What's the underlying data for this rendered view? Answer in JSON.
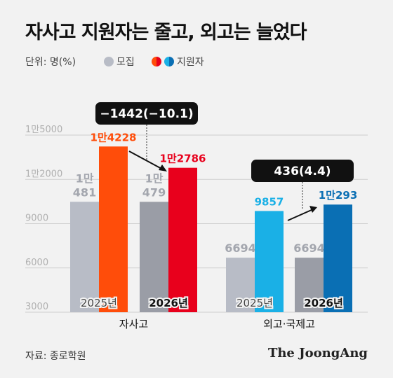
{
  "title": "자사고 지원자는 줄고, 외고는 늘었다",
  "unit_label": "단위: 명(%)",
  "legend": [
    {
      "label": "모집",
      "colors": [
        "#b8bcc6",
        "#9a9da6"
      ]
    },
    {
      "label": "지원자",
      "colors": [
        "#ff4d0a",
        "#1aa0d8"
      ]
    }
  ],
  "source": "자료: 종로학원",
  "brand": "The JoongAng",
  "chart_data": {
    "type": "bar",
    "ylim": [
      3000,
      15000
    ],
    "yticks": [
      3000,
      6000,
      9000,
      12000,
      15000
    ],
    "ytick_labels": [
      "3000",
      "6000",
      "9000",
      "1만2000",
      "1만5000"
    ],
    "groups": [
      {
        "name": "자사고",
        "years": [
          "2025년",
          "2026년"
        ],
        "bars": [
          {
            "series": "모집",
            "year": "2025년",
            "value": 10481,
            "label": [
              "1만",
              "481"
            ],
            "color": "#b8bcc6"
          },
          {
            "series": "지원자",
            "year": "2025년",
            "value": 14228,
            "label": [
              "1만4228"
            ],
            "color": "#ff4d0a"
          },
          {
            "series": "모집",
            "year": "2026년",
            "value": 10479,
            "label": [
              "1만",
              "479"
            ],
            "color": "#9a9da6"
          },
          {
            "series": "지원자",
            "year": "2026년",
            "value": 12786,
            "label": [
              "1만2786"
            ],
            "color": "#e8001c"
          }
        ],
        "change_label": "−1442(−10.1)"
      },
      {
        "name": "외고·국제고",
        "years": [
          "2025년",
          "2026년"
        ],
        "bars": [
          {
            "series": "모집",
            "year": "2025년",
            "value": 6694,
            "label": [
              "6694"
            ],
            "color": "#b8bcc6"
          },
          {
            "series": "지원자",
            "year": "2025년",
            "value": 9857,
            "label": [
              "9857"
            ],
            "color": "#1ab0e6"
          },
          {
            "series": "모집",
            "year": "2026년",
            "value": 6694,
            "label": [
              "6694"
            ],
            "color": "#9a9da6"
          },
          {
            "series": "지원자",
            "year": "2026년",
            "value": 10293,
            "label": [
              "1만293"
            ],
            "color": "#0a6fb4"
          }
        ],
        "change_label": "436(4.4)"
      }
    ]
  }
}
